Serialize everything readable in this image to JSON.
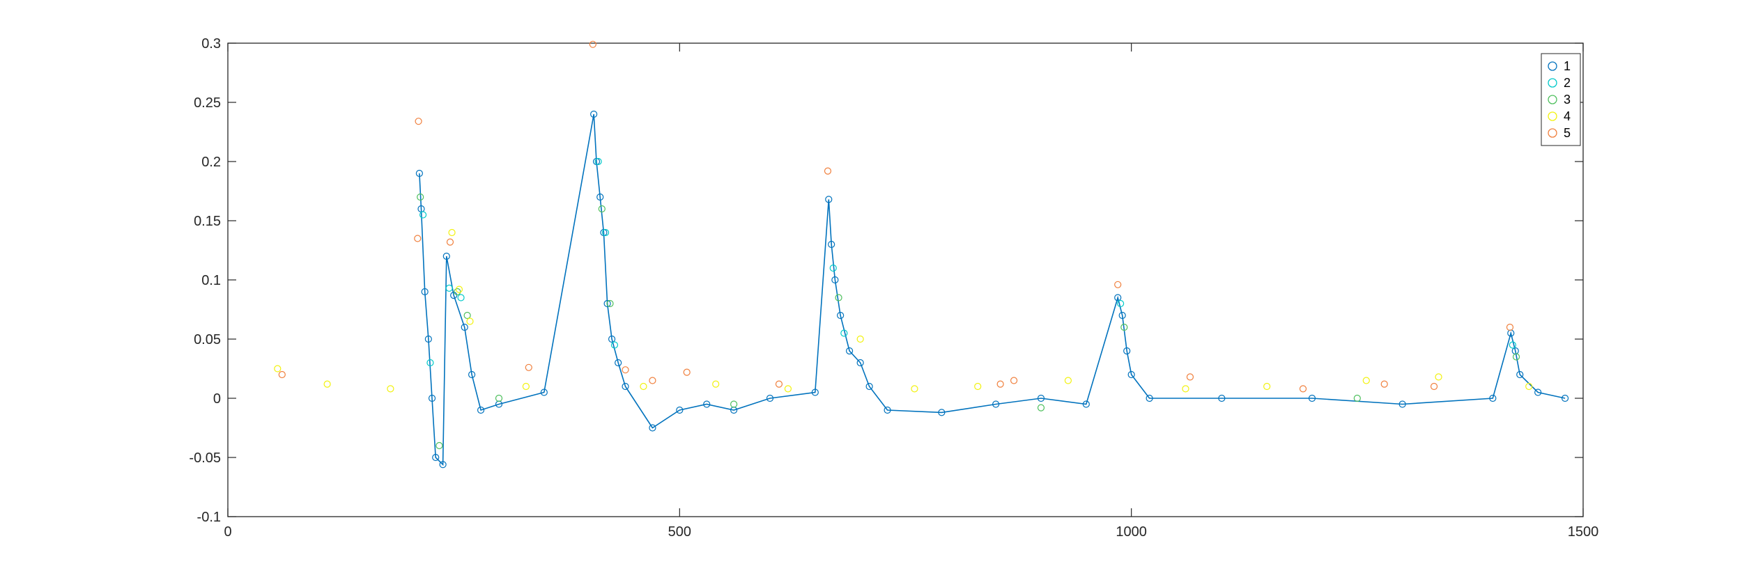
{
  "chart_data": {
    "type": "scatter",
    "title": "",
    "xlabel": "",
    "ylabel": "",
    "xlim": [
      0,
      1500
    ],
    "ylim": [
      -0.1,
      0.3
    ],
    "x_ticks": [
      0,
      500,
      1000,
      1500
    ],
    "y_ticks": [
      -0.1,
      -0.05,
      0,
      0.05,
      0.1,
      0.15,
      0.2,
      0.25,
      0.3
    ],
    "x_tick_labels": [
      "0",
      "500",
      "1000",
      "1500"
    ],
    "y_tick_labels": [
      "-0.1",
      "-0.05",
      "0",
      "0.05",
      "0.1",
      "0.15",
      "0.2",
      "0.25",
      "0.3"
    ],
    "grid": false,
    "legend_position": "top-right",
    "line_color": "#0072BD",
    "series": [
      {
        "name": "1",
        "marker": "circle",
        "color": "#0072BD",
        "points": [
          [
            212,
            0.19
          ],
          [
            214,
            0.16
          ],
          [
            218,
            0.09
          ],
          [
            222,
            0.05
          ],
          [
            226,
            0.0
          ],
          [
            230,
            -0.05
          ],
          [
            238,
            -0.056
          ],
          [
            242,
            0.12
          ],
          [
            250,
            0.087
          ],
          [
            262,
            0.06
          ],
          [
            270,
            0.02
          ],
          [
            280,
            -0.01
          ],
          [
            300,
            -0.005
          ],
          [
            350,
            0.005
          ],
          [
            405,
            0.24
          ],
          [
            408,
            0.2
          ],
          [
            412,
            0.17
          ],
          [
            416,
            0.14
          ],
          [
            420,
            0.08
          ],
          [
            425,
            0.05
          ],
          [
            432,
            0.03
          ],
          [
            440,
            0.01
          ],
          [
            470,
            -0.025
          ],
          [
            500,
            -0.01
          ],
          [
            530,
            -0.005
          ],
          [
            560,
            -0.01
          ],
          [
            600,
            0.0
          ],
          [
            650,
            0.005
          ],
          [
            665,
            0.168
          ],
          [
            668,
            0.13
          ],
          [
            672,
            0.1
          ],
          [
            678,
            0.07
          ],
          [
            688,
            0.04
          ],
          [
            700,
            0.03
          ],
          [
            710,
            0.01
          ],
          [
            730,
            -0.01
          ],
          [
            790,
            -0.012
          ],
          [
            850,
            -0.005
          ],
          [
            900,
            0.0
          ],
          [
            950,
            -0.005
          ],
          [
            985,
            0.085
          ],
          [
            990,
            0.07
          ],
          [
            995,
            0.04
          ],
          [
            1000,
            0.02
          ],
          [
            1020,
            0.0
          ],
          [
            1100,
            0.0
          ],
          [
            1200,
            0.0
          ],
          [
            1300,
            -0.005
          ],
          [
            1400,
            0.0
          ],
          [
            1420,
            0.055
          ],
          [
            1425,
            0.04
          ],
          [
            1430,
            0.02
          ],
          [
            1450,
            0.005
          ],
          [
            1480,
            0.0
          ]
        ]
      },
      {
        "name": "2",
        "marker": "circle",
        "color": "#00C9C9",
        "points": [
          [
            216,
            0.155
          ],
          [
            224,
            0.03
          ],
          [
            245,
            0.093
          ],
          [
            258,
            0.085
          ],
          [
            410,
            0.2
          ],
          [
            418,
            0.14
          ],
          [
            428,
            0.045
          ],
          [
            670,
            0.11
          ],
          [
            682,
            0.055
          ],
          [
            988,
            0.08
          ],
          [
            1422,
            0.045
          ]
        ]
      },
      {
        "name": "3",
        "marker": "circle",
        "color": "#4DBF5C",
        "points": [
          [
            213,
            0.17
          ],
          [
            234,
            -0.04
          ],
          [
            254,
            0.09
          ],
          [
            265,
            0.07
          ],
          [
            414,
            0.16
          ],
          [
            423,
            0.08
          ],
          [
            676,
            0.085
          ],
          [
            992,
            0.06
          ],
          [
            1426,
            0.035
          ],
          [
            300,
            0.0
          ],
          [
            560,
            -0.005
          ],
          [
            900,
            -0.008
          ],
          [
            1250,
            0.0
          ]
        ]
      },
      {
        "name": "4",
        "marker": "circle",
        "color": "#F2F20D",
        "points": [
          [
            248,
            0.14
          ],
          [
            256,
            0.092
          ],
          [
            268,
            0.065
          ],
          [
            55,
            0.025
          ],
          [
            110,
            0.012
          ],
          [
            180,
            0.008
          ],
          [
            330,
            0.01
          ],
          [
            460,
            0.01
          ],
          [
            540,
            0.012
          ],
          [
            620,
            0.008
          ],
          [
            700,
            0.05
          ],
          [
            760,
            0.008
          ],
          [
            830,
            0.01
          ],
          [
            930,
            0.015
          ],
          [
            1060,
            0.008
          ],
          [
            1150,
            0.01
          ],
          [
            1260,
            0.015
          ],
          [
            1340,
            0.018
          ],
          [
            1440,
            0.01
          ]
        ]
      },
      {
        "name": "5",
        "marker": "circle",
        "color": "#F07F3C",
        "points": [
          [
            211,
            0.234
          ],
          [
            210,
            0.135
          ],
          [
            246,
            0.132
          ],
          [
            404,
            0.299
          ],
          [
            664,
            0.192
          ],
          [
            985,
            0.096
          ],
          [
            1419,
            0.06
          ],
          [
            60,
            0.02
          ],
          [
            333,
            0.026
          ],
          [
            440,
            0.024
          ],
          [
            470,
            0.015
          ],
          [
            508,
            0.022
          ],
          [
            610,
            0.012
          ],
          [
            855,
            0.012
          ],
          [
            870,
            0.015
          ],
          [
            1065,
            0.018
          ],
          [
            1190,
            0.008
          ],
          [
            1280,
            0.012
          ],
          [
            1335,
            0.01
          ]
        ]
      }
    ]
  }
}
